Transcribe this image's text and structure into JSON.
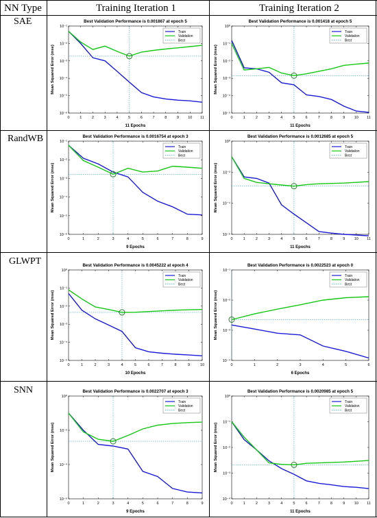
{
  "table": {
    "col_type": "NN Type",
    "col_iter1": "Training Iteration 1",
    "col_iter2": "Training Iteration 2",
    "rows": [
      "SAE",
      "RandWB",
      "GLWPT",
      "SNN"
    ]
  },
  "colors": {
    "train": "#1a1ad6",
    "validation": "#14c814",
    "best": "#3aa8c8",
    "axes": "#000000"
  },
  "chart_data": [
    {
      "type": "line",
      "row": "SAE",
      "iteration": 1,
      "title": "Best Validation Performance is 0.001867 at epoch 5",
      "xlabel": "11 Epochs",
      "ylabel": "Mean Squared Error  (mse)",
      "yscale": "log",
      "xlim": [
        0,
        11
      ],
      "ylim": [
        1e-06,
        0.1
      ],
      "xticks": [
        0,
        1,
        2,
        3,
        4,
        5,
        6,
        7,
        8,
        9,
        10,
        11
      ],
      "yticks": [
        "10⁻⁶",
        "10⁻⁵",
        "10⁻⁴",
        "10⁻³",
        "10⁻²",
        "10⁻¹"
      ],
      "legend": [
        "Train",
        "Validation",
        "Best"
      ],
      "best": {
        "epoch": 5,
        "value": 0.001867
      },
      "series": [
        {
          "name": "Train",
          "x": [
            0,
            1,
            2,
            3,
            4,
            5,
            6,
            7,
            8,
            9,
            10,
            11
          ],
          "values": [
            0.05,
            0.01,
            0.0015,
            0.001,
            0.00025,
            6e-05,
            1.5e-05,
            8.5e-06,
            6.5e-06,
            5.5e-06,
            5e-06,
            4.2e-06
          ]
        },
        {
          "name": "Validation",
          "x": [
            0,
            1,
            2,
            3,
            4,
            5,
            6,
            7,
            8,
            9,
            10,
            11
          ],
          "values": [
            0.05,
            0.012,
            0.0045,
            0.007,
            0.0035,
            0.001867,
            0.0032,
            0.004,
            0.0048,
            0.0056,
            0.0066,
            0.0078
          ]
        }
      ]
    },
    {
      "type": "line",
      "row": "SAE",
      "iteration": 2,
      "title": "Best Validation Performance is 0.001418 at epoch 5",
      "xlabel": "11 Epochs",
      "ylabel": "Mean Squared Error  (mse)",
      "yscale": "log",
      "xlim": [
        0,
        11
      ],
      "ylim": [
        1e-05,
        1.0
      ],
      "xticks": [
        0,
        1,
        2,
        3,
        4,
        5,
        6,
        7,
        8,
        9,
        10,
        11
      ],
      "yticks": [
        "10⁻⁵",
        "10⁻⁴",
        "10⁻³",
        "10⁻²",
        "10⁻¹",
        "10⁰"
      ],
      "legend": [
        "Train",
        "Validation",
        "Best"
      ],
      "best": {
        "epoch": 5,
        "value": 0.001418
      },
      "series": [
        {
          "name": "Train",
          "x": [
            0,
            1,
            2,
            3,
            4,
            5,
            6,
            7,
            8,
            9,
            10,
            11
          ],
          "values": [
            0.15,
            0.004,
            0.0035,
            0.0022,
            0.00055,
            0.00042,
            0.00011,
            9e-05,
            6e-05,
            2.5e-05,
            1.3e-05,
            1.1e-05
          ]
        },
        {
          "name": "Validation",
          "x": [
            0,
            1,
            2,
            3,
            4,
            5,
            6,
            7,
            8,
            9,
            10,
            11
          ],
          "values": [
            0.1,
            0.003,
            0.0035,
            0.0042,
            0.002,
            0.001418,
            0.0018,
            0.0025,
            0.0035,
            0.0055,
            0.0065,
            0.0075
          ]
        }
      ]
    },
    {
      "type": "line",
      "row": "RandWB",
      "iteration": 1,
      "title": "Best Validation Performance is 0.0016754 at epoch 3",
      "xlabel": "9 Epochs",
      "ylabel": "Mean Squared Error  (mse)",
      "yscale": "log",
      "xlim": [
        0,
        9
      ],
      "ylim": [
        1e-06,
        0.1
      ],
      "xticks": [
        0,
        1,
        2,
        3,
        4,
        5,
        6,
        7,
        8,
        9
      ],
      "yticks": [
        "10⁻⁶",
        "10⁻⁵",
        "10⁻⁴",
        "10⁻³",
        "10⁻²",
        "10⁻¹"
      ],
      "legend": [
        "Train",
        "Validation",
        "Best"
      ],
      "best": {
        "epoch": 3,
        "value": 0.0016754
      },
      "series": [
        {
          "name": "Train",
          "x": [
            0,
            1,
            2,
            3,
            4,
            5,
            6,
            7,
            8,
            9
          ],
          "values": [
            0.06,
            0.012,
            0.006,
            0.0022,
            0.0012,
            0.00018,
            6e-05,
            3e-05,
            1.2e-05,
            1.1e-05
          ]
        },
        {
          "name": "Validation",
          "x": [
            0,
            1,
            2,
            3,
            4,
            5,
            6,
            7,
            8,
            9
          ],
          "values": [
            0.06,
            0.009,
            0.004,
            0.0016754,
            0.0035,
            0.0022,
            0.0025,
            0.0045,
            0.004,
            0.0035
          ]
        }
      ]
    },
    {
      "type": "line",
      "row": "RandWB",
      "iteration": 2,
      "title": "Best Validation Performance is 0.0012685 at epoch 5",
      "xlabel": "11 Epochs",
      "ylabel": "Mean Squared Error  (mse)",
      "yscale": "log",
      "xlim": [
        0,
        11
      ],
      "ylim": [
        1e-06,
        1.0
      ],
      "xticks": [
        0,
        1,
        2,
        3,
        4,
        5,
        6,
        7,
        8,
        9,
        10,
        11
      ],
      "yticks": [
        "10⁻⁶",
        "10⁻⁴",
        "10⁻²",
        "10⁰"
      ],
      "legend": [
        "Train",
        "Validation",
        "Best"
      ],
      "best": {
        "epoch": 5,
        "value": 0.0012685
      },
      "series": [
        {
          "name": "Train",
          "x": [
            0,
            1,
            2,
            3,
            4,
            5,
            6,
            7,
            8,
            9,
            10,
            11
          ],
          "values": [
            0.1,
            0.005,
            0.004,
            0.002,
            8e-05,
            2e-05,
            5.5e-06,
            1.5e-06,
            1.2e-06,
            1e-06,
            9e-07,
            8e-07
          ]
        },
        {
          "name": "Validation",
          "x": [
            0,
            1,
            2,
            3,
            4,
            5,
            6,
            7,
            8,
            9,
            10,
            11
          ],
          "values": [
            0.1,
            0.004,
            0.0022,
            0.0018,
            0.0015,
            0.0012685,
            0.0016,
            0.0018,
            0.0019,
            0.002,
            0.0022,
            0.0025
          ]
        }
      ]
    },
    {
      "type": "line",
      "row": "GLWPT",
      "iteration": 1,
      "title": "Best Validation Performance is 0.0045222 at epoch 4",
      "xlabel": "10 Epochs",
      "ylabel": "Mean Squared Error  (mse)",
      "yscale": "log",
      "xlim": [
        0,
        10
      ],
      "ylim": [
        1e-05,
        1.0
      ],
      "xticks": [
        0,
        1,
        2,
        3,
        4,
        5,
        6,
        7,
        8,
        9,
        10
      ],
      "yticks": [
        "10⁻⁵",
        "10⁻⁴",
        "10⁻³",
        "10⁻²",
        "10⁻¹",
        "10⁰"
      ],
      "legend": [
        "Train",
        "Validation",
        "Best"
      ],
      "best": {
        "epoch": 4,
        "value": 0.0045222
      },
      "series": [
        {
          "name": "Train",
          "x": [
            0,
            1,
            2,
            3,
            4,
            5,
            6,
            7,
            8,
            9,
            10
          ],
          "values": [
            0.05,
            0.006,
            0.002,
            0.0009,
            0.0004,
            5e-05,
            3e-05,
            2.5e-05,
            2.2e-05,
            2e-05,
            1.8e-05
          ]
        },
        {
          "name": "Validation",
          "x": [
            0,
            1,
            2,
            3,
            4,
            5,
            6,
            7,
            8,
            9,
            10
          ],
          "values": [
            0.08,
            0.025,
            0.009,
            0.0065,
            0.0045222,
            0.0046,
            0.005,
            0.0055,
            0.006,
            0.0063,
            0.0065
          ]
        }
      ]
    },
    {
      "type": "line",
      "row": "GLWPT",
      "iteration": 2,
      "title": "Best Validation Performance is 0.0022523 at epoch 0",
      "xlabel": "6 Epochs",
      "ylabel": "Mean Squared Error  (mse)",
      "yscale": "log",
      "xlim": [
        0,
        6
      ],
      "ylim": [
        0.0001,
        0.1
      ],
      "xticks": [
        0,
        1,
        2,
        3,
        4,
        5,
        6
      ],
      "yticks": [
        "10⁻⁴",
        "10⁻³",
        "10⁻²",
        "10⁻¹"
      ],
      "legend": [
        "Train",
        "Validation",
        "Best"
      ],
      "best": {
        "epoch": 0,
        "value": 0.0022523
      },
      "series": [
        {
          "name": "Train",
          "x": [
            0,
            1,
            2,
            3,
            4,
            5,
            6
          ],
          "values": [
            0.0015,
            0.0011,
            0.0008,
            0.0007,
            0.0003,
            0.0002,
            0.00012
          ]
        },
        {
          "name": "Validation",
          "x": [
            0,
            1,
            2,
            3,
            4,
            5,
            6
          ],
          "values": [
            0.0022523,
            0.0035,
            0.005,
            0.007,
            0.01,
            0.012,
            0.013
          ]
        }
      ]
    },
    {
      "type": "line",
      "row": "SNN",
      "iteration": 1,
      "title": "Best Validation Performance is 0.0022707 at epoch 3",
      "xlabel": "9 Epochs",
      "ylabel": "Mean Squared Error  (mse)",
      "yscale": "log",
      "xlim": [
        0,
        9
      ],
      "ylim": [
        1e-06,
        1.0
      ],
      "xticks": [
        0,
        1,
        2,
        3,
        4,
        5,
        6,
        7,
        8,
        9
      ],
      "yticks": [
        "10⁻⁶",
        "10⁻⁴",
        "10⁻²",
        "10⁰"
      ],
      "legend": [
        "Train",
        "Validation",
        "Best"
      ],
      "best": {
        "epoch": 3,
        "value": 0.0022707
      },
      "series": [
        {
          "name": "Train",
          "x": [
            0,
            1,
            2,
            3,
            4,
            5,
            6,
            7,
            8,
            9
          ],
          "values": [
            0.1,
            0.01,
            0.0015,
            0.0012,
            0.0008,
            4e-05,
            2e-05,
            4e-06,
            2.5e-06,
            2.2e-06
          ]
        },
        {
          "name": "Validation",
          "x": [
            0,
            1,
            2,
            3,
            4,
            5,
            6,
            7,
            8,
            9
          ],
          "values": [
            0.1,
            0.008,
            0.003,
            0.0022707,
            0.005,
            0.012,
            0.02,
            0.025,
            0.028,
            0.03
          ]
        }
      ]
    },
    {
      "type": "line",
      "row": "SNN",
      "iteration": 2,
      "title": "Best Validation Performance is 0.0020985 at epoch 5",
      "xlabel": "11 Epochs",
      "ylabel": "Mean Squared Error  (mse)",
      "yscale": "log",
      "xlim": [
        0,
        11
      ],
      "ylim": [
        0.0001,
        1.0
      ],
      "xticks": [
        0,
        1,
        2,
        3,
        4,
        5,
        6,
        7,
        8,
        9,
        10,
        11
      ],
      "yticks": [
        "10⁻⁴",
        "10⁻³",
        "10⁻²",
        "10⁻¹",
        "10⁰"
      ],
      "legend": [
        "Train",
        "Validation",
        "Best"
      ],
      "best": {
        "epoch": 5,
        "value": 0.0020985
      },
      "series": [
        {
          "name": "Train",
          "x": [
            0,
            1,
            2,
            3,
            4,
            5,
            6,
            7,
            8,
            9,
            10,
            11
          ],
          "values": [
            0.1,
            0.02,
            0.008,
            0.003,
            0.0015,
            0.0009,
            0.0005,
            0.0004,
            0.00035,
            0.0003,
            0.00028,
            0.00025
          ]
        },
        {
          "name": "Validation",
          "x": [
            0,
            1,
            2,
            3,
            4,
            5,
            6,
            7,
            8,
            9,
            10,
            11
          ],
          "values": [
            0.1,
            0.025,
            0.008,
            0.0025,
            0.0022,
            0.0020985,
            0.0024,
            0.0025,
            0.0026,
            0.0027,
            0.0029,
            0.0031
          ]
        }
      ]
    }
  ]
}
